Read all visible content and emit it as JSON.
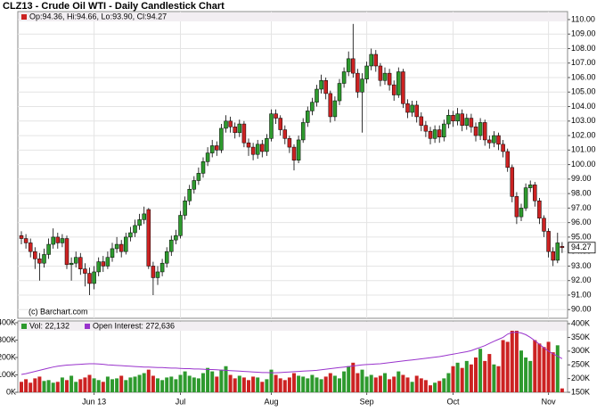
{
  "chart_data": [
    {
      "type": "candlestick",
      "title": "CLZ13 - Crude Oil WTI - Daily Candlestick Chart",
      "legend": "Op:94.36, Hi:94.66, Lo:93.90, Cl:94.27",
      "copyright": "(c) Barchart.com",
      "last_label": "94.27",
      "up_color": "#2e9a2e",
      "down_color": "#cc2222",
      "open": [
        95.1,
        94.9,
        94.6,
        94.0,
        93.5,
        93.2,
        93.8,
        94.5,
        95.0,
        94.6,
        94.9,
        93.1,
        93.2,
        93.6,
        92.8,
        92.5,
        91.8,
        92.6,
        93.3,
        93.0,
        93.6,
        94.2,
        94.5,
        94.0,
        95.0,
        95.3,
        95.8,
        96.2,
        96.9,
        93.0,
        92.2,
        92.6,
        93.2,
        94.0,
        94.8,
        95.1,
        96.5,
        97.5,
        98.3,
        98.9,
        99.4,
        100.2,
        100.8,
        101.3,
        101.0,
        102.5,
        103.0,
        102.6,
        102.2,
        102.8,
        101.5,
        101.2,
        100.7,
        101.4,
        100.9,
        101.8,
        103.5,
        103.2,
        102.4,
        101.8,
        101.2,
        100.3,
        101.7,
        102.9,
        103.7,
        104.3,
        105.2,
        105.8,
        104.9,
        103.3,
        104.4,
        105.6,
        106.4,
        107.3,
        106.3,
        105.0,
        105.9,
        106.8,
        107.6,
        106.8,
        105.8,
        106.3,
        105.5,
        104.8,
        106.4,
        104.2,
        103.6,
        104.1,
        103.3,
        102.7,
        102.3,
        101.8,
        102.4,
        101.9,
        102.8,
        103.4,
        103.0,
        103.5,
        102.7,
        103.2,
        102.6,
        102.0,
        102.9,
        101.7,
        101.5,
        102.0,
        101.4,
        100.9,
        99.8,
        97.8,
        96.4,
        97.0,
        98.4,
        98.6,
        97.5,
        96.3,
        95.4,
        94.0,
        93.4,
        94.36
      ],
      "high": [
        95.4,
        95.2,
        94.9,
        94.3,
        93.9,
        94.2,
        94.9,
        95.6,
        95.3,
        95.2,
        95.1,
        93.6,
        94.0,
        93.9,
        93.2,
        92.9,
        93.0,
        93.6,
        93.7,
        94.0,
        94.6,
        95.0,
        94.8,
        95.3,
        95.7,
        96.2,
        96.6,
        97.1,
        97.0,
        93.3,
        93.0,
        93.5,
        94.3,
        95.1,
        95.5,
        96.8,
        97.8,
        98.6,
        99.2,
        99.8,
        100.5,
        101.2,
        101.7,
        101.6,
        102.8,
        103.4,
        103.3,
        102.9,
        103.1,
        103.0,
        101.8,
        101.5,
        101.7,
        101.7,
        102.1,
        103.8,
        103.8,
        103.4,
        102.7,
        102.0,
        101.4,
        102.0,
        103.2,
        104.0,
        104.6,
        105.5,
        106.2,
        106.0,
        105.1,
        104.7,
        105.9,
        106.7,
        107.8,
        109.7,
        106.6,
        106.3,
        107.1,
        108.0,
        107.9,
        107.0,
        106.7,
        106.6,
        105.8,
        106.7,
        106.6,
        104.5,
        104.4,
        104.4,
        103.6,
        103.0,
        102.6,
        102.7,
        102.7,
        103.1,
        103.8,
        103.7,
        103.9,
        103.8,
        103.5,
        103.5,
        102.9,
        103.2,
        103.1,
        102.0,
        102.3,
        102.2,
        101.7,
        101.1,
        100.0,
        98.1,
        97.3,
        98.7,
        98.9,
        98.8,
        97.7,
        96.5,
        95.6,
        94.3,
        95.3,
        94.66
      ],
      "low": [
        94.5,
        94.2,
        93.6,
        92.8,
        92.0,
        92.9,
        93.5,
        94.2,
        94.2,
        94.3,
        92.8,
        92.0,
        92.9,
        92.4,
        91.6,
        91.0,
        91.4,
        92.3,
        92.6,
        92.8,
        93.3,
        93.9,
        93.6,
        93.8,
        94.7,
        95.0,
        95.5,
        95.9,
        92.8,
        91.0,
        91.7,
        92.3,
        92.9,
        93.7,
        94.5,
        94.9,
        96.2,
        97.2,
        98.0,
        98.6,
        99.1,
        99.9,
        100.5,
        100.6,
        100.8,
        102.2,
        102.2,
        101.8,
        101.9,
        101.2,
        100.6,
        100.3,
        100.4,
        100.5,
        100.6,
        101.6,
        102.8,
        102.0,
        101.4,
        100.8,
        99.6,
        100.1,
        101.5,
        102.6,
        103.4,
        104.0,
        104.9,
        104.5,
        102.9,
        103.0,
        104.1,
        105.3,
        106.1,
        106.0,
        104.6,
        102.2,
        105.6,
        106.5,
        106.4,
        105.4,
        105.5,
        105.1,
        104.4,
        104.6,
        103.9,
        103.2,
        103.3,
        102.9,
        102.3,
        101.9,
        101.4,
        101.5,
        101.5,
        101.6,
        102.5,
        102.6,
        102.7,
        102.3,
        102.4,
        102.2,
        101.6,
        101.7,
        101.3,
        101.1,
        101.2,
        101.0,
        100.5,
        99.5,
        97.4,
        95.9,
        96.1,
        96.8,
        98.1,
        97.1,
        95.9,
        95.0,
        93.6,
        93.0,
        93.2,
        93.9
      ],
      "close": [
        94.9,
        94.6,
        94.0,
        93.5,
        93.2,
        93.8,
        94.5,
        95.0,
        94.6,
        94.9,
        93.1,
        93.2,
        93.6,
        92.8,
        92.5,
        91.8,
        92.6,
        93.3,
        93.0,
        93.6,
        94.2,
        94.5,
        94.0,
        95.0,
        95.3,
        95.8,
        96.2,
        96.6,
        93.0,
        92.2,
        92.6,
        93.2,
        94.0,
        94.8,
        95.1,
        96.5,
        97.5,
        98.3,
        98.9,
        99.4,
        100.2,
        100.8,
        101.3,
        101.0,
        102.5,
        103.0,
        102.6,
        102.2,
        102.8,
        101.5,
        101.2,
        100.7,
        101.4,
        100.9,
        101.8,
        103.5,
        103.2,
        102.4,
        101.8,
        101.2,
        100.3,
        101.7,
        102.9,
        103.7,
        104.3,
        105.2,
        105.8,
        104.9,
        103.3,
        104.4,
        105.6,
        106.4,
        107.3,
        106.3,
        105.0,
        105.9,
        106.8,
        107.6,
        106.8,
        105.8,
        106.3,
        105.5,
        104.8,
        106.4,
        104.2,
        103.6,
        104.1,
        103.3,
        102.7,
        102.3,
        101.8,
        102.4,
        101.9,
        102.8,
        103.4,
        103.0,
        103.5,
        102.7,
        103.2,
        102.6,
        102.0,
        102.9,
        101.7,
        101.5,
        102.0,
        101.4,
        100.9,
        99.8,
        97.8,
        96.4,
        97.0,
        98.4,
        98.6,
        97.5,
        96.3,
        95.4,
        94.0,
        93.4,
        94.6,
        94.27
      ],
      "ylim": [
        89.4,
        110.55
      ],
      "yticks": [
        {
          "value": 90,
          "label": "90.00"
        },
        {
          "value": 91,
          "label": "91.00"
        },
        {
          "value": 92,
          "label": "92.00"
        },
        {
          "value": 93,
          "label": "93.00"
        },
        {
          "value": 94,
          "label": "94.00"
        },
        {
          "value": 95,
          "label": "95.00"
        },
        {
          "value": 96,
          "label": "96.00"
        },
        {
          "value": 97,
          "label": "97.00"
        },
        {
          "value": 98,
          "label": "98.00"
        },
        {
          "value": 99,
          "label": "99.00"
        },
        {
          "value": 100,
          "label": "100.00"
        },
        {
          "value": 101,
          "label": "101.00"
        },
        {
          "value": 102,
          "label": "102.00"
        },
        {
          "value": 103,
          "label": "103.00"
        },
        {
          "value": 104,
          "label": "104.00"
        },
        {
          "value": 105,
          "label": "105.00"
        },
        {
          "value": 106,
          "label": "106.00"
        },
        {
          "value": 107,
          "label": "107.00"
        },
        {
          "value": 108,
          "label": "108.00"
        },
        {
          "value": 109,
          "label": "109.00"
        },
        {
          "value": 110,
          "label": "110.00"
        }
      ],
      "xticks": [
        {
          "value": 16,
          "label": "Jun 13"
        },
        {
          "value": 35,
          "label": "Jul"
        },
        {
          "value": 55,
          "label": "Aug"
        },
        {
          "value": 76,
          "label": "Sep"
        },
        {
          "value": 95,
          "label": "Oct"
        },
        {
          "value": 116,
          "label": "Nov"
        }
      ],
      "grid": true
    },
    {
      "type": "volume",
      "series": [
        {
          "name": "Vol: 22,132",
          "color": "#2e9a2e",
          "values": [
            60000,
            75000,
            55000,
            80000,
            90000,
            65000,
            70000,
            55000,
            60000,
            85000,
            70000,
            95000,
            60000,
            75000,
            85000,
            100000,
            80000,
            70000,
            60000,
            90000,
            75000,
            80000,
            95000,
            70000,
            85000,
            90000,
            100000,
            110000,
            130000,
            95000,
            80000,
            70000,
            85000,
            90000,
            75000,
            100000,
            120000,
            95000,
            85000,
            80000,
            110000,
            140000,
            120000,
            90000,
            130000,
            150000,
            100000,
            80000,
            95000,
            85000,
            70000,
            90000,
            85000,
            60000,
            75000,
            130000,
            100000,
            80000,
            70000,
            85000,
            110000,
            95000,
            90000,
            80000,
            100000,
            85000,
            75000,
            90000,
            110000,
            95000,
            80000,
            120000,
            150000,
            170000,
            110000,
            130000,
            90000,
            100000,
            85000,
            95000,
            110000,
            75000,
            90000,
            120000,
            100000,
            85000,
            60000,
            95000,
            80000,
            70000,
            40000,
            55000,
            65000,
            80000,
            110000,
            150000,
            170000,
            140000,
            180000,
            160000,
            200000,
            250000,
            180000,
            220000,
            160000,
            150000,
            300000,
            290000,
            370000,
            360000,
            240000,
            200000,
            180000,
            300000,
            280000,
            260000,
            290000,
            230000,
            270000,
            22132
          ]
        },
        {
          "name": "Open Interest: 272,636",
          "color": "#9933cc",
          "axis": "y2",
          "values": [
            215000,
            218000,
            222000,
            226000,
            230000,
            234000,
            238000,
            242000,
            245000,
            247000,
            249000,
            250000,
            251000,
            252000,
            253000,
            254000,
            254000,
            253000,
            252000,
            250000,
            249000,
            248000,
            247000,
            246000,
            245000,
            244000,
            243000,
            242000,
            242000,
            241000,
            240000,
            240000,
            239000,
            238000,
            238000,
            237000,
            236000,
            236000,
            235000,
            235000,
            234000,
            233000,
            233000,
            232000,
            231000,
            230000,
            229000,
            228000,
            227000,
            226000,
            225000,
            224000,
            223000,
            222000,
            222000,
            221000,
            221000,
            222000,
            223000,
            224000,
            225000,
            226000,
            227000,
            228000,
            229000,
            230000,
            232000,
            234000,
            236000,
            238000,
            240000,
            242000,
            244000,
            246000,
            248000,
            250000,
            251000,
            252000,
            253000,
            254000,
            256000,
            258000,
            260000,
            262000,
            264000,
            266000,
            268000,
            270000,
            272000,
            274000,
            276000,
            278000,
            280000,
            283000,
            286000,
            289000,
            292000,
            295000,
            298000,
            302000,
            308000,
            314000,
            320000,
            328000,
            336000,
            343000,
            350000,
            362000,
            368000,
            369000,
            366000,
            360000,
            350000,
            338000,
            325000,
            312000,
            300000,
            290000,
            282000,
            272636
          ]
        }
      ],
      "ylim": [
        0,
        410000
      ],
      "yticks": [
        {
          "value": 0,
          "label": "0K"
        },
        {
          "value": 100000,
          "label": "100K"
        },
        {
          "value": 200000,
          "label": "200K"
        },
        {
          "value": 300000,
          "label": "300K"
        },
        {
          "value": 400000,
          "label": "400K"
        }
      ],
      "y2lim": [
        150000,
        410000
      ],
      "y2ticks": [
        {
          "value": 150000,
          "label": "150K"
        },
        {
          "value": 200000,
          "label": "200K"
        },
        {
          "value": 250000,
          "label": "250K"
        },
        {
          "value": 300000,
          "label": "300K"
        },
        {
          "value": 350000,
          "label": "350K"
        },
        {
          "value": 400000,
          "label": "400K"
        }
      ]
    }
  ]
}
